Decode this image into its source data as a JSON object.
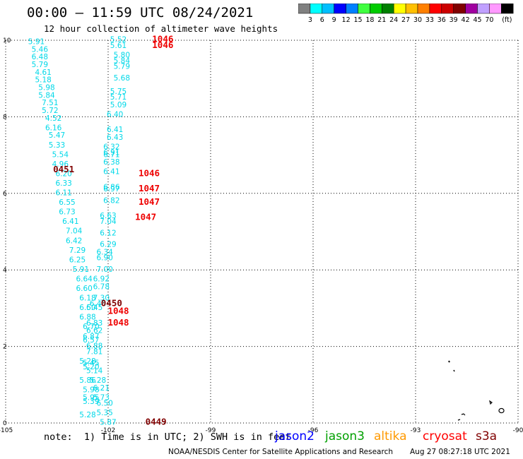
{
  "header": {
    "title": "00:00 – 11:59 UTC 08/24/2021",
    "subtitle": "12 hour collection of altimeter wave heights"
  },
  "colorbar": {
    "colors": [
      "#808080",
      "#00ffff",
      "#00bfff",
      "#0000ff",
      "#0080ff",
      "#40ff40",
      "#00cc00",
      "#008000",
      "#ffff00",
      "#ffc000",
      "#ff8000",
      "#ff0000",
      "#cc0000",
      "#800000",
      "#a000a0",
      "#c0a0ff",
      "#ff99ff",
      "#000000"
    ],
    "labels": [
      "3",
      "6",
      "9",
      "12",
      "15",
      "18",
      "21",
      "24",
      "27",
      "30",
      "33",
      "36",
      "39",
      "42",
      "45",
      "70"
    ],
    "unit": "(ft)"
  },
  "map": {
    "x_ticks": [
      "-105",
      "-102",
      "-99",
      "-96",
      "-93",
      "-90"
    ],
    "y_ticks": [
      "0",
      "2",
      "4",
      "6",
      "8",
      "10"
    ],
    "lon_range": [
      -105,
      -90
    ],
    "lat_range": [
      0,
      10
    ]
  },
  "observations": [
    {
      "lon": -104.1,
      "lat": 9.9,
      "v": "5.91"
    },
    {
      "lon": -104.0,
      "lat": 9.7,
      "v": "5.46"
    },
    {
      "lon": -104.0,
      "lat": 9.5,
      "v": "6.48"
    },
    {
      "lon": -104.0,
      "lat": 9.3,
      "v": "5.79"
    },
    {
      "lon": -103.9,
      "lat": 9.1,
      "v": "4.61"
    },
    {
      "lon": -103.9,
      "lat": 8.9,
      "v": "5.18"
    },
    {
      "lon": -103.8,
      "lat": 8.7,
      "v": "5.98"
    },
    {
      "lon": -103.8,
      "lat": 8.5,
      "v": "5.84"
    },
    {
      "lon": -103.7,
      "lat": 8.3,
      "v": "7.51"
    },
    {
      "lon": -103.7,
      "lat": 8.1,
      "v": "5.72"
    },
    {
      "lon": -103.6,
      "lat": 7.9,
      "v": "4.52"
    },
    {
      "lon": -103.6,
      "lat": 7.65,
      "v": "6.16"
    },
    {
      "lon": -103.5,
      "lat": 7.45,
      "v": "5.47"
    },
    {
      "lon": -103.5,
      "lat": 7.2,
      "v": "5.33"
    },
    {
      "lon": -103.4,
      "lat": 6.95,
      "v": "5.54"
    },
    {
      "lon": -103.4,
      "lat": 6.7,
      "v": "4.96"
    },
    {
      "lon": -103.3,
      "lat": 6.45,
      "v": "6.20"
    },
    {
      "lon": -103.3,
      "lat": 6.2,
      "v": "6.33"
    },
    {
      "lon": -103.3,
      "lat": 5.95,
      "v": "6.11"
    },
    {
      "lon": -103.2,
      "lat": 5.7,
      "v": "6.55"
    },
    {
      "lon": -103.2,
      "lat": 5.45,
      "v": "6.73"
    },
    {
      "lon": -103.1,
      "lat": 5.2,
      "v": "6.41"
    },
    {
      "lon": -103.0,
      "lat": 4.95,
      "v": "7.04"
    },
    {
      "lon": -103.0,
      "lat": 4.7,
      "v": "6.42"
    },
    {
      "lon": -102.9,
      "lat": 4.45,
      "v": "7.29"
    },
    {
      "lon": -102.9,
      "lat": 4.2,
      "v": "6.25"
    },
    {
      "lon": -102.8,
      "lat": 3.95,
      "v": "5.91"
    },
    {
      "lon": -102.7,
      "lat": 3.7,
      "v": "6.64"
    },
    {
      "lon": -102.7,
      "lat": 3.45,
      "v": "6.60"
    },
    {
      "lon": -102.6,
      "lat": 3.2,
      "v": "6.18"
    },
    {
      "lon": -102.6,
      "lat": 2.95,
      "v": "6.50"
    },
    {
      "lon": -102.6,
      "lat": 2.7,
      "v": "6.88"
    },
    {
      "lon": -102.5,
      "lat": 2.45,
      "v": "6.70"
    },
    {
      "lon": -102.5,
      "lat": 2.2,
      "v": "6.87"
    },
    {
      "lon": -102.5,
      "lat": 2.1,
      "v": "6.57"
    },
    {
      "lon": -102.4,
      "lat": 1.95,
      "v": "6.88"
    },
    {
      "lon": -102.4,
      "lat": 1.8,
      "v": "7.81"
    },
    {
      "lon": -102.6,
      "lat": 1.55,
      "v": "5.28"
    },
    {
      "lon": -102.5,
      "lat": 1.5,
      "v": "5.45"
    },
    {
      "lon": -102.5,
      "lat": 1.4,
      "v": "5.20"
    },
    {
      "lon": -102.4,
      "lat": 1.3,
      "v": "5.14"
    },
    {
      "lon": -102.6,
      "lat": 1.05,
      "v": "5.86"
    },
    {
      "lon": -102.3,
      "lat": 1.05,
      "v": "5.28"
    },
    {
      "lon": -102.5,
      "lat": 0.8,
      "v": "5.98"
    },
    {
      "lon": -102.2,
      "lat": 0.85,
      "v": "6.21"
    },
    {
      "lon": -102.5,
      "lat": 0.6,
      "v": "5.95"
    },
    {
      "lon": -102.2,
      "lat": 0.6,
      "v": "5.73"
    },
    {
      "lon": -102.5,
      "lat": 0.5,
      "v": "5.39"
    },
    {
      "lon": -102.1,
      "lat": 0.45,
      "v": "6.50"
    },
    {
      "lon": -102.6,
      "lat": 0.15,
      "v": "5.28"
    },
    {
      "lon": -102.1,
      "lat": 0.2,
      "v": "5.35"
    },
    {
      "lon": -102.0,
      "lat": -0.05,
      "v": "5.87"
    },
    {
      "lon": -101.7,
      "lat": 9.95,
      "v": "5.52"
    },
    {
      "lon": -101.7,
      "lat": 9.8,
      "v": "5.61"
    },
    {
      "lon": -101.6,
      "lat": 9.55,
      "v": "5.80"
    },
    {
      "lon": -101.6,
      "lat": 9.4,
      "v": "5.84"
    },
    {
      "lon": -101.6,
      "lat": 9.25,
      "v": "5.79"
    },
    {
      "lon": -101.6,
      "lat": 8.95,
      "v": "5.68"
    },
    {
      "lon": -101.7,
      "lat": 8.6,
      "v": "5.75"
    },
    {
      "lon": -101.7,
      "lat": 8.45,
      "v": "5.71"
    },
    {
      "lon": -101.7,
      "lat": 8.25,
      "v": "5.09"
    },
    {
      "lon": -101.8,
      "lat": 8.0,
      "v": "6.40"
    },
    {
      "lon": -101.8,
      "lat": 7.6,
      "v": "6.41"
    },
    {
      "lon": -101.8,
      "lat": 7.4,
      "v": "6.43"
    },
    {
      "lon": -101.9,
      "lat": 7.15,
      "v": "6.32"
    },
    {
      "lon": -101.9,
      "lat": 7.0,
      "v": "6.91"
    },
    {
      "lon": -101.9,
      "lat": 6.95,
      "v": "6.71"
    },
    {
      "lon": -101.9,
      "lat": 6.75,
      "v": "6.38"
    },
    {
      "lon": -101.9,
      "lat": 6.5,
      "v": "6.41"
    },
    {
      "lon": -101.9,
      "lat": 6.1,
      "v": "6.86"
    },
    {
      "lon": -101.9,
      "lat": 6.05,
      "v": "6.97"
    },
    {
      "lon": -101.9,
      "lat": 5.75,
      "v": "6.82"
    },
    {
      "lon": -102.0,
      "lat": 5.35,
      "v": "6.63"
    },
    {
      "lon": -102.0,
      "lat": 5.2,
      "v": "7.04"
    },
    {
      "lon": -102.0,
      "lat": 4.9,
      "v": "6.12"
    },
    {
      "lon": -102.0,
      "lat": 4.6,
      "v": "6.29"
    },
    {
      "lon": -102.1,
      "lat": 4.4,
      "v": "6.34"
    },
    {
      "lon": -102.1,
      "lat": 4.25,
      "v": "6.90"
    },
    {
      "lon": -102.1,
      "lat": 3.95,
      "v": "7.00"
    },
    {
      "lon": -102.2,
      "lat": 3.7,
      "v": "6.92"
    },
    {
      "lon": -102.2,
      "lat": 3.5,
      "v": "6.78"
    },
    {
      "lon": -102.2,
      "lat": 3.2,
      "v": "7.30"
    },
    {
      "lon": -102.3,
      "lat": 3.05,
      "v": "6.46"
    },
    {
      "lon": -102.4,
      "lat": 2.95,
      "v": "6.45"
    },
    {
      "lon": -102.4,
      "lat": 2.55,
      "v": "6.83"
    },
    {
      "lon": -102.4,
      "lat": 2.35,
      "v": "6.62"
    }
  ],
  "passes": [
    {
      "lon": -100.4,
      "lat": 9.95,
      "v": "1046",
      "color": "#ee0000"
    },
    {
      "lon": -100.4,
      "lat": 9.8,
      "v": "1046",
      "color": "#ee0000"
    },
    {
      "lon": -100.8,
      "lat": 6.45,
      "v": "1046",
      "color": "#ee0000"
    },
    {
      "lon": -100.8,
      "lat": 6.05,
      "v": "1047",
      "color": "#ee0000"
    },
    {
      "lon": -100.8,
      "lat": 5.7,
      "v": "1047",
      "color": "#ee0000"
    },
    {
      "lon": -100.9,
      "lat": 5.3,
      "v": "1047",
      "color": "#ee0000"
    },
    {
      "lon": -101.7,
      "lat": 2.85,
      "v": "1048",
      "color": "#ee0000"
    },
    {
      "lon": -101.7,
      "lat": 2.55,
      "v": "1048",
      "color": "#ee0000"
    },
    {
      "lon": -103.3,
      "lat": 6.55,
      "v": "0451",
      "color": "#800000"
    },
    {
      "lon": -101.9,
      "lat": 3.05,
      "v": "0450",
      "color": "#800000"
    },
    {
      "lon": -100.6,
      "lat": -0.05,
      "v": "0449",
      "color": "#800000"
    }
  ],
  "footer": {
    "note": "note:  1) Time is in UTC; 2) SWH is in feet",
    "satellites": [
      {
        "name": "jason2",
        "color": "#0000ff"
      },
      {
        "name": "jason3",
        "color": "#00a000"
      },
      {
        "name": "altika",
        "color": "#ff9900"
      },
      {
        "name": "cryosat",
        "color": "#ff0000"
      },
      {
        "name": "s3a",
        "color": "#800000"
      }
    ],
    "credit": "NOAA/NESDIS Center for Satellite Applications and Research",
    "timestamp": "Aug 27 08:27:18 UTC 2021"
  }
}
